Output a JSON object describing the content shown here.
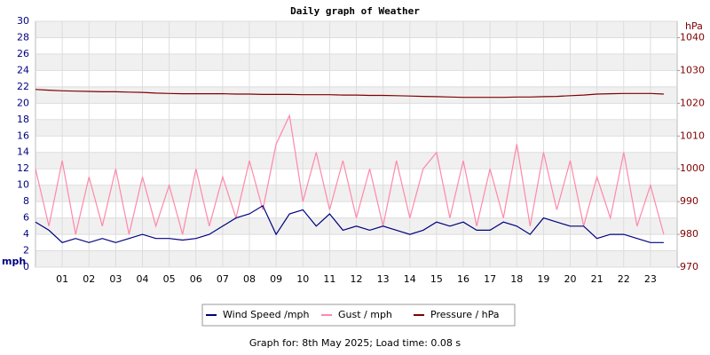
{
  "chart_data": {
    "type": "line",
    "title": "Daily graph of Weather",
    "ylabel": "mph",
    "y2label": "hPa",
    "caption": "Graph for: 8th May 2025; Load time: 0.08 s",
    "x": [
      0,
      0.5,
      1,
      1.5,
      2,
      2.5,
      3,
      3.5,
      4,
      4.5,
      5,
      5.5,
      6,
      6.5,
      7,
      7.5,
      8,
      8.5,
      9,
      9.5,
      10,
      10.5,
      11,
      11.5,
      12,
      12.5,
      13,
      13.5,
      14,
      14.5,
      15,
      15.5,
      16,
      16.5,
      17,
      17.5,
      18,
      18.5,
      19,
      19.5,
      20,
      20.5,
      21,
      21.5,
      22,
      22.5,
      23,
      23.5
    ],
    "xlim": [
      0,
      24
    ],
    "xticks": [
      {
        "value": 1,
        "label": "01"
      },
      {
        "value": 2,
        "label": "02"
      },
      {
        "value": 3,
        "label": "03"
      },
      {
        "value": 4,
        "label": "04"
      },
      {
        "value": 5,
        "label": "05"
      },
      {
        "value": 6,
        "label": "06"
      },
      {
        "value": 7,
        "label": "07"
      },
      {
        "value": 8,
        "label": "08"
      },
      {
        "value": 9,
        "label": "09"
      },
      10,
      11,
      12,
      13,
      14,
      15,
      16,
      17,
      18,
      19,
      20,
      21,
      22,
      23
    ],
    "ylim": [
      0,
      30
    ],
    "yticks": [
      0,
      2,
      4,
      6,
      8,
      10,
      12,
      14,
      16,
      18,
      20,
      22,
      24,
      26,
      28,
      30
    ],
    "y2lim": [
      970,
      1045
    ],
    "y2ticks": [
      970,
      980,
      990,
      1000,
      1010,
      1020,
      1030,
      1040
    ],
    "grid": true,
    "band_color": "#f0f0f0",
    "y_color": "#000080",
    "y2_color": "#800000",
    "series": [
      {
        "name": "Wind Speed /mph",
        "color": "#000080",
        "values": [
          5.5,
          4.5,
          3,
          3.5,
          3,
          3.5,
          3,
          3.5,
          4,
          3.5,
          3.5,
          3.3,
          3.5,
          4,
          5,
          6,
          6.5,
          7.5,
          4,
          6.5,
          7,
          5,
          6.5,
          4.5,
          5,
          4.5,
          5,
          4.5,
          4,
          4.5,
          5.5,
          5,
          5.5,
          4.5,
          4.5,
          5.5,
          5,
          4,
          6,
          5.5,
          5,
          5,
          3.5,
          4,
          4,
          3.5,
          3,
          3
        ]
      },
      {
        "name": "Gust / mph",
        "color": "#ff88aa",
        "values": [
          12,
          5,
          13,
          4,
          11,
          5,
          12,
          4,
          11,
          5,
          10,
          4,
          12,
          5,
          11,
          6,
          13,
          7,
          15,
          18.5,
          8,
          14,
          7,
          13,
          6,
          12,
          5,
          13,
          6,
          12,
          14,
          6,
          13,
          5,
          12,
          6,
          15,
          5,
          14,
          7,
          13,
          5,
          11,
          6,
          14,
          5,
          10,
          4
        ]
      },
      {
        "name": "Pressure / hPa",
        "color": "#800000",
        "axis": "y2",
        "values": [
          1024.2,
          1024.0,
          1023.8,
          1023.7,
          1023.6,
          1023.5,
          1023.5,
          1023.4,
          1023.3,
          1023.1,
          1023.0,
          1022.9,
          1022.9,
          1022.9,
          1022.9,
          1022.8,
          1022.8,
          1022.7,
          1022.7,
          1022.7,
          1022.6,
          1022.6,
          1022.6,
          1022.5,
          1022.5,
          1022.4,
          1022.4,
          1022.3,
          1022.2,
          1022.1,
          1022.0,
          1021.9,
          1021.8,
          1021.8,
          1021.8,
          1021.8,
          1021.9,
          1021.9,
          1022.0,
          1022.1,
          1022.3,
          1022.5,
          1022.8,
          1022.9,
          1023.0,
          1023.0,
          1023.0,
          1022.8
        ]
      }
    ]
  }
}
